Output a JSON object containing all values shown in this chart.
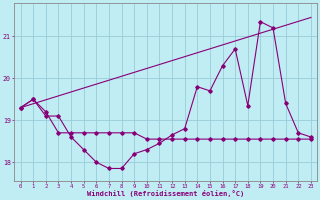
{
  "xlabel": "Windchill (Refroidissement éolien,°C)",
  "bg_color": "#c0ecf4",
  "line_color": "#880077",
  "grid_color": "#99ccd8",
  "spine_color": "#888888",
  "hours": [
    0,
    1,
    2,
    3,
    4,
    5,
    6,
    7,
    8,
    9,
    10,
    11,
    12,
    13,
    14,
    15,
    16,
    17,
    18,
    19,
    20,
    21,
    22,
    23
  ],
  "temp_main": [
    19.3,
    19.5,
    19.1,
    19.1,
    18.6,
    18.3,
    18.0,
    17.85,
    17.85,
    18.2,
    18.3,
    18.45,
    18.65,
    18.8,
    19.8,
    19.7,
    20.3,
    20.7,
    19.35,
    21.35,
    21.2,
    19.4,
    18.7,
    18.6
  ],
  "temp_step": [
    19.3,
    19.5,
    19.2,
    18.7,
    18.7,
    18.7,
    18.7,
    18.7,
    18.7,
    18.7,
    18.55,
    18.55,
    18.55,
    18.55,
    18.55,
    18.55,
    18.55,
    18.55,
    18.55,
    18.55,
    18.55,
    18.55,
    18.55,
    18.55
  ],
  "trend_x": [
    0,
    23
  ],
  "trend_y": [
    19.3,
    21.45
  ],
  "ylim": [
    17.55,
    21.8
  ],
  "xlim": [
    -0.5,
    23.5
  ],
  "yticks": [
    18,
    19,
    20,
    21
  ],
  "xticks": [
    0,
    1,
    2,
    3,
    4,
    5,
    6,
    7,
    8,
    9,
    10,
    11,
    12,
    13,
    14,
    15,
    16,
    17,
    18,
    19,
    20,
    21,
    22,
    23
  ]
}
